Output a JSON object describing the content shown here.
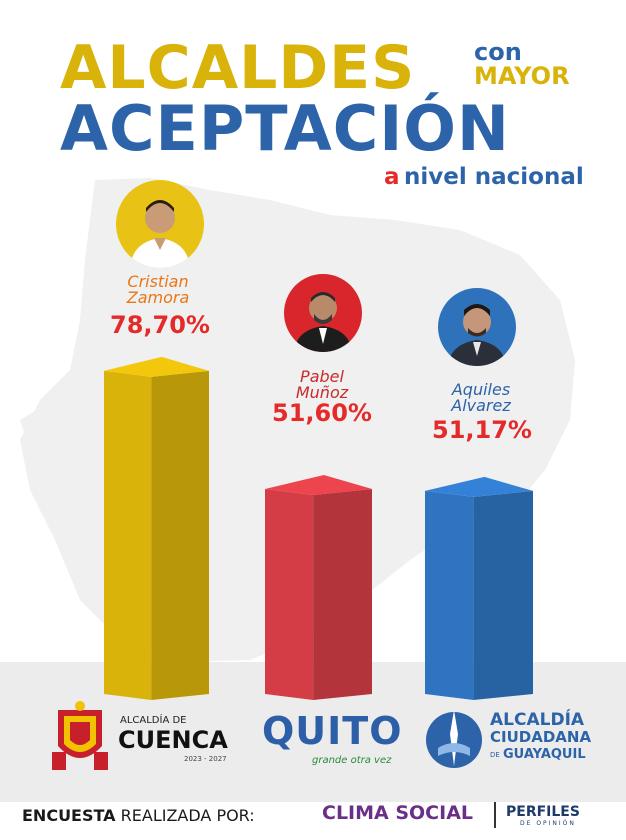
{
  "title": {
    "line1": "ALCALDES",
    "con": "con",
    "mayor": "MAYOR",
    "line2": "ACEPTACIÓN",
    "a": "a",
    "nivel": "nivel nacional"
  },
  "candidates": [
    {
      "first": "Cristian",
      "last": "Zamora",
      "percent_label": "78,70%",
      "color": "#d9b20a",
      "name_color": "#e8771a"
    },
    {
      "first": "Pabel",
      "last": "Muñoz",
      "percent_label": "51,60%",
      "color": "#d43d45",
      "name_color": "#c92a2a"
    },
    {
      "first": "Aquiles",
      "last": "Alvarez",
      "percent_label": "51,17%",
      "color": "#2e74c0",
      "name_color": "#2d63a8"
    }
  ],
  "chart_data": {
    "type": "bar",
    "categories": [
      "Cristian Zamora",
      "Pabel Muñoz",
      "Aquiles Alvarez"
    ],
    "values": [
      78.7,
      51.6,
      51.17
    ],
    "data_labels": [
      "78,70%",
      "51,60%",
      "51,17%"
    ],
    "title": "ALCALDES con MAYOR ACEPTACIÓN a nivel nacional",
    "xlabel": "",
    "ylabel": "",
    "ylim": [
      0,
      100
    ]
  },
  "logos": {
    "cuenca_prefix": "ALCALDÍA DE",
    "cuenca_name": "CUENCA",
    "cuenca_years": "2023 - 2027",
    "quito_name": "QUITO",
    "quito_slogan": "grande otra vez",
    "gye_line1": "ALCALDÍA",
    "gye_line2": "CIUDADANA",
    "gye_line3_prefix": "DE",
    "gye_line3": "GUAYAQUIL"
  },
  "footer": {
    "bold": "ENCUESTA",
    "rest": "REALIZADA POR:",
    "clima": "CLIMA SOCIAL",
    "perfiles": "PERFILES",
    "perfiles_sub": "DE OPINIÓN"
  },
  "colors": {
    "yellow": "#d9b20a",
    "blue": "#2d63a8",
    "red": "#e52a2a"
  }
}
